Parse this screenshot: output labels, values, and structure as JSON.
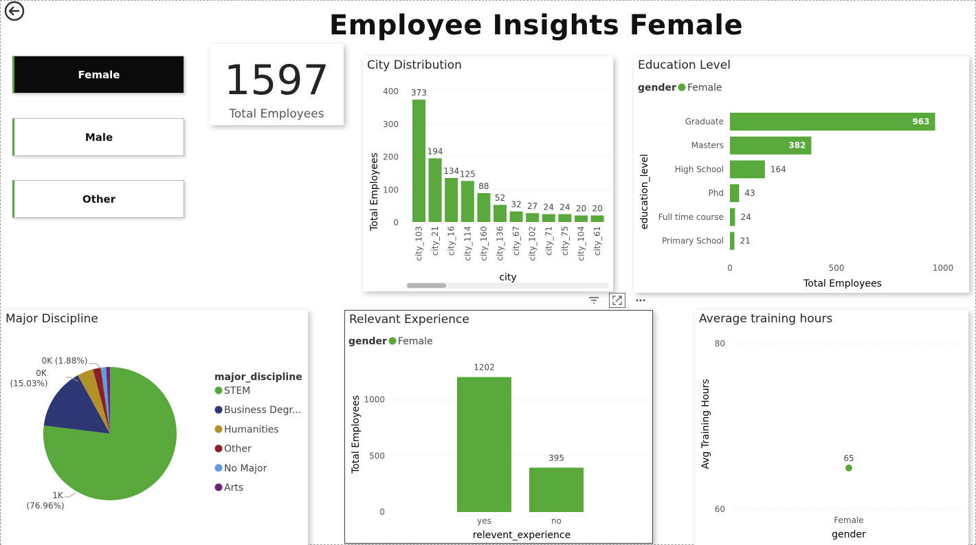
{
  "page": {
    "title": "Employee Insights Female"
  },
  "colors": {
    "green": "#58a83c",
    "navy": "#2c3773",
    "gold": "#b39129",
    "maroon": "#8b1f24",
    "lightblue": "#5d9ddb",
    "purple": "#72217f"
  },
  "slicers": {
    "female": "Female",
    "male": "Male",
    "other": "Other"
  },
  "kpi": {
    "value": "1597",
    "label": "Total Employees"
  },
  "city": {
    "title": "City Distribution",
    "chart_data": {
      "type": "bar",
      "categories": [
        "city_103",
        "city_21",
        "city_16",
        "city_114",
        "city_160",
        "city_136",
        "city_67",
        "city_102",
        "city_71",
        "city_75",
        "city_104",
        "city_61"
      ],
      "values": [
        373,
        194,
        134,
        125,
        88,
        52,
        32,
        27,
        24,
        24,
        20,
        20
      ],
      "xlabel": "city",
      "ylabel": "Total Employees",
      "ylim": [
        0,
        400
      ],
      "yticks": [
        0,
        100,
        200,
        300,
        400
      ],
      "grid": true
    }
  },
  "education": {
    "title": "Education Level",
    "legend_title": "gender",
    "legend_item": "Female",
    "chart_data": {
      "type": "bar",
      "orientation": "horizontal",
      "categories": [
        "Graduate",
        "Masters",
        "High School",
        "Phd",
        "Full time course",
        "Primary School"
      ],
      "values": [
        963,
        382,
        164,
        43,
        24,
        21
      ],
      "xlabel": "Total Employees",
      "ylabel": "education_level",
      "xlim": [
        0,
        1000
      ],
      "xticks": [
        0,
        500,
        1000
      ]
    }
  },
  "major": {
    "title": "Major Discipline",
    "legend_title": "major_discipline",
    "chart_data": {
      "type": "pie",
      "labels": [
        "STEM",
        "Business Degr...",
        "Humanities",
        "Other",
        "No Major",
        "Arts"
      ],
      "values": [
        76.96,
        15.03,
        3.9,
        1.88,
        1.3,
        0.93
      ],
      "data_labels": [
        {
          "value": "1K",
          "pct": "(76.96%)"
        },
        {
          "value": "0K",
          "pct": "(15.03%)"
        },
        {
          "value": "0K",
          "pct": "(1.88%)"
        }
      ]
    }
  },
  "experience": {
    "title": "Relevant Experience",
    "legend_title": "gender",
    "legend_item": "Female",
    "chart_data": {
      "type": "bar",
      "categories": [
        "yes",
        "no"
      ],
      "values": [
        1202,
        395
      ],
      "xlabel": "relevent_experience",
      "ylabel": "Total Employees",
      "ylim": [
        0,
        1250
      ],
      "yticks": [
        0,
        500,
        1000
      ],
      "grid": true
    }
  },
  "training": {
    "title": "Average training hours",
    "chart_data": {
      "type": "scatter",
      "categories": [
        "Female"
      ],
      "values": [
        65
      ],
      "xlabel": "gender",
      "ylabel": "Avg Training Hours",
      "ylim": [
        56.7,
        81
      ],
      "yticks": [
        60,
        80
      ],
      "grid": true
    }
  },
  "header_icons": [
    "filter-icon",
    "focus-mode-icon",
    "more-options-icon"
  ]
}
